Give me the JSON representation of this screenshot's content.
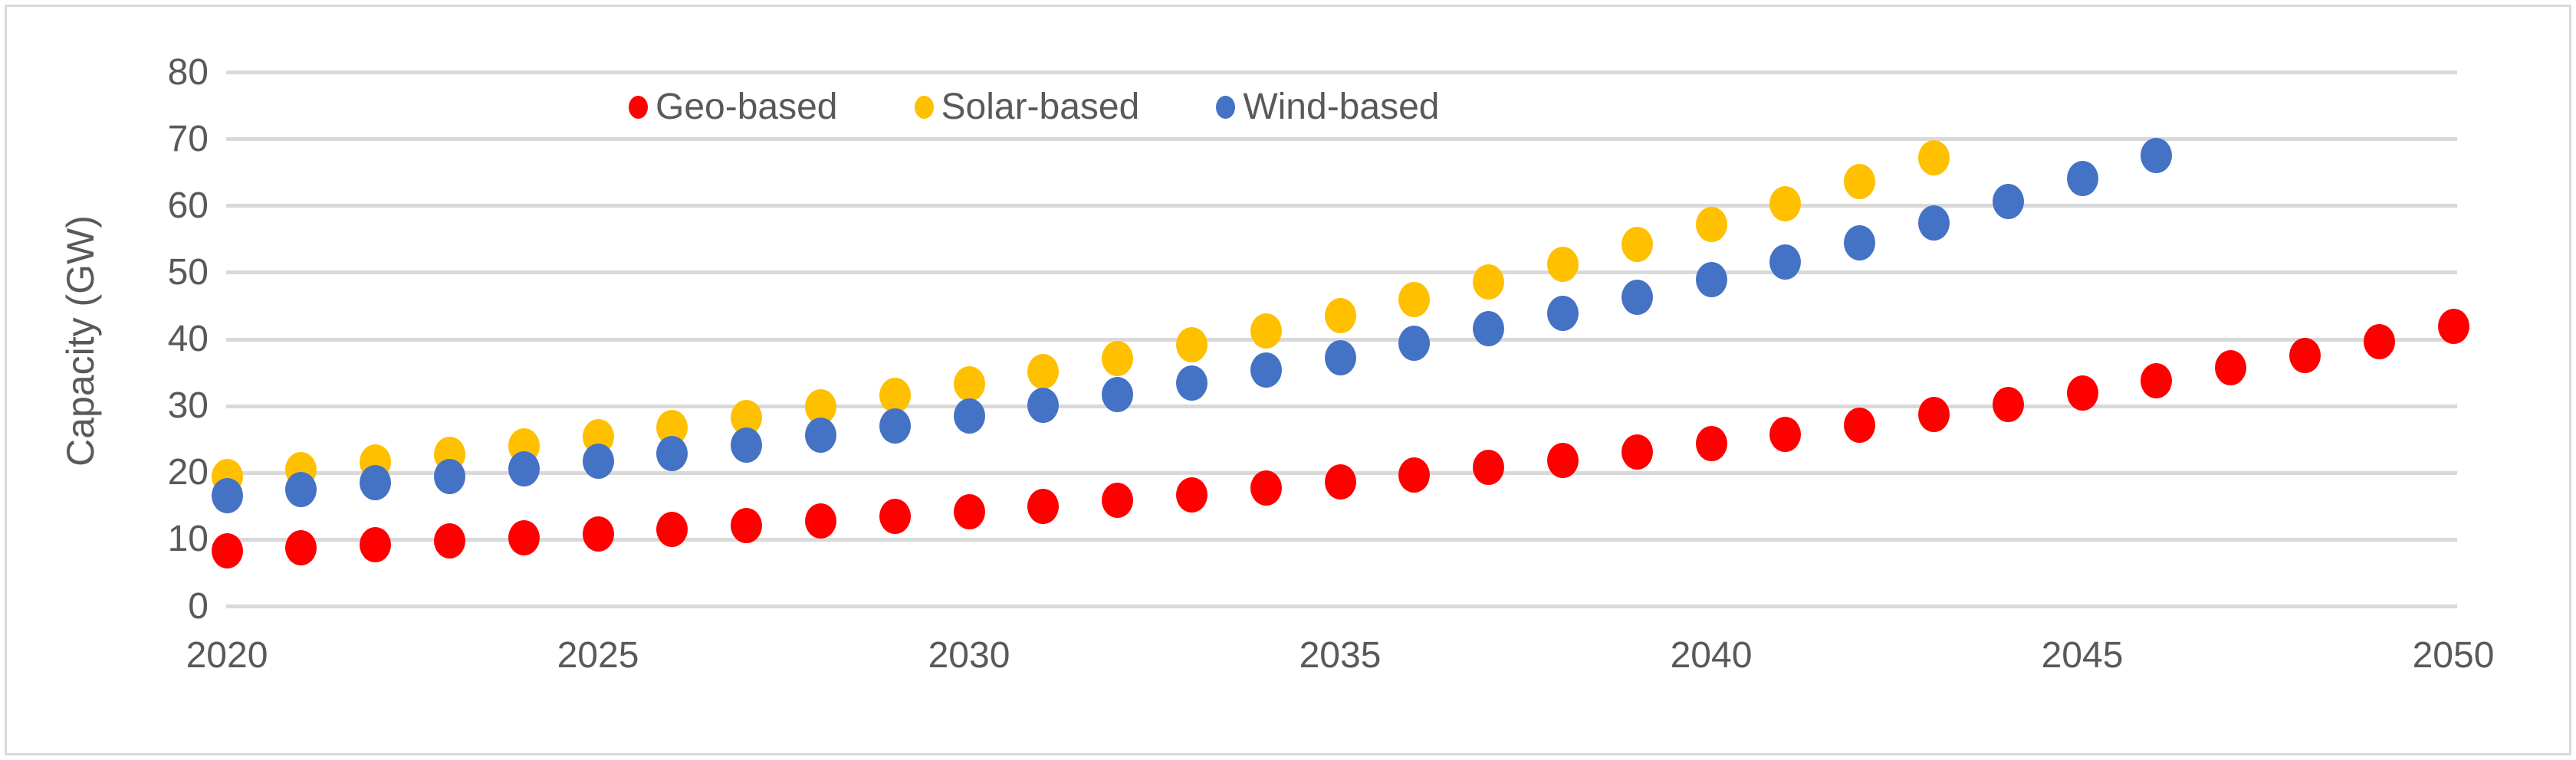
{
  "chart_data": {
    "type": "scatter",
    "title": "",
    "xlabel": "",
    "ylabel": "Capacity (GW)",
    "xlim": [
      2020,
      2050
    ],
    "ylim": [
      0,
      80
    ],
    "x_ticks": [
      2020,
      2025,
      2030,
      2035,
      2040,
      2045,
      2050
    ],
    "y_ticks": [
      0,
      10,
      20,
      30,
      40,
      50,
      60,
      70,
      80
    ],
    "grid": "horizontal",
    "legend_position": "top-center",
    "series": [
      {
        "name": "Geo-based",
        "color": "#FF0000",
        "x": [
          2020,
          2021,
          2022,
          2023,
          2024,
          2025,
          2026,
          2027,
          2028,
          2029,
          2030,
          2031,
          2032,
          2033,
          2034,
          2035,
          2036,
          2037,
          2038,
          2039,
          2040,
          2041,
          2042,
          2043,
          2044,
          2045,
          2046,
          2047,
          2048,
          2049,
          2050
        ],
        "y": [
          8.3,
          8.8,
          9.2,
          9.8,
          10.3,
          10.9,
          11.5,
          12.1,
          12.8,
          13.5,
          14.2,
          15.0,
          15.9,
          16.7,
          17.7,
          18.7,
          19.7,
          20.8,
          21.9,
          23.1,
          24.4,
          25.8,
          27.2,
          28.7,
          30.3,
          32.0,
          33.8,
          35.7,
          37.6,
          39.7,
          41.9
        ]
      },
      {
        "name": "Solar-based",
        "color": "#FFC000",
        "x": [
          2020,
          2021,
          2022,
          2023,
          2024,
          2025,
          2026,
          2027,
          2028,
          2029,
          2030,
          2031,
          2032,
          2033,
          2034,
          2035,
          2036,
          2037,
          2038,
          2039,
          2040,
          2041,
          2042,
          2043
        ],
        "y": [
          19.4,
          20.5,
          21.6,
          22.8,
          24.1,
          25.4,
          26.8,
          28.3,
          29.9,
          31.6,
          33.3,
          35.2,
          37.1,
          39.2,
          41.3,
          43.6,
          46.0,
          48.6,
          51.3,
          54.2,
          57.2,
          60.3,
          63.7,
          67.2
        ]
      },
      {
        "name": "Wind-based",
        "color": "#4472C4",
        "x": [
          2020,
          2021,
          2022,
          2023,
          2024,
          2025,
          2026,
          2027,
          2028,
          2029,
          2030,
          2031,
          2032,
          2033,
          2034,
          2035,
          2036,
          2037,
          2038,
          2039,
          2040,
          2041,
          2042,
          2043,
          2044,
          2045,
          2046
        ],
        "y": [
          16.6,
          17.5,
          18.5,
          19.5,
          20.6,
          21.7,
          22.9,
          24.2,
          25.6,
          27.0,
          28.5,
          30.1,
          31.7,
          33.5,
          35.4,
          37.3,
          39.4,
          41.6,
          43.9,
          46.3,
          48.9,
          51.6,
          54.5,
          57.5,
          60.7,
          64.1,
          67.6
        ]
      }
    ],
    "colors": {
      "gridline": "#D9D9D9",
      "axis_text": "#595959",
      "chart_border": "#D9D9D9",
      "background": "#FFFFFF"
    }
  }
}
